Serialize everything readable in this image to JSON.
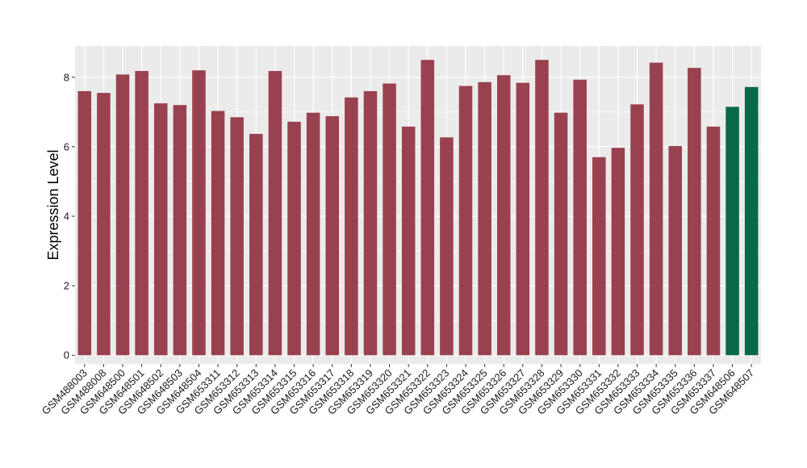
{
  "chart_data": {
    "type": "bar",
    "ylabel": "Expression Level",
    "xlabel": "",
    "ylim": [
      -0.25,
      8.9
    ],
    "yticks": [
      0,
      2,
      4,
      6,
      8
    ],
    "grid": true,
    "colors": {
      "default": "#9A4150",
      "highlight": "#07694A",
      "panel": "#EBEBEB",
      "grid": "#FFFFFF"
    },
    "categories": [
      "GSM488003",
      "GSM488008",
      "GSM648500",
      "GSM648501",
      "GSM648502",
      "GSM648503",
      "GSM648504",
      "GSM653311",
      "GSM653312",
      "GSM653313",
      "GSM653314",
      "GSM653315",
      "GSM653316",
      "GSM653317",
      "GSM653318",
      "GSM653319",
      "GSM653320",
      "GSM653321",
      "GSM653322",
      "GSM653323",
      "GSM653324",
      "GSM653325",
      "GSM653326",
      "GSM653327",
      "GSM653328",
      "GSM653329",
      "GSM653330",
      "GSM653331",
      "GSM653332",
      "GSM653333",
      "GSM653334",
      "GSM653335",
      "GSM653336",
      "GSM653337",
      "GSM648506",
      "GSM648507"
    ],
    "values": [
      7.6,
      7.55,
      8.08,
      8.18,
      7.25,
      7.2,
      8.2,
      7.03,
      6.85,
      6.37,
      8.18,
      6.72,
      6.98,
      6.88,
      7.42,
      7.6,
      7.82,
      6.58,
      8.5,
      6.27,
      7.75,
      7.86,
      8.06,
      7.84,
      8.5,
      6.98,
      7.93,
      5.7,
      5.97,
      7.22,
      8.42,
      6.02,
      8.27,
      6.58,
      7.15,
      7.72
    ],
    "highlighted": [
      "GSM648506",
      "GSM648507"
    ]
  }
}
